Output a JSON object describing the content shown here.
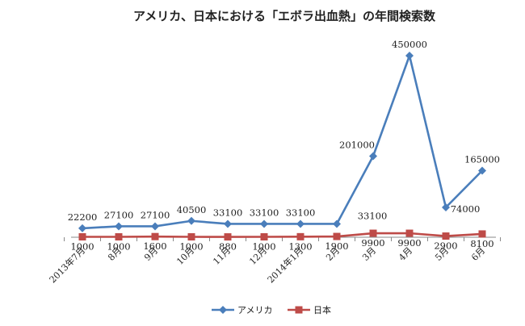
{
  "chart_data": {
    "type": "line",
    "title": "アメリカ、日本における「エボラ出血熱」の年間検索数",
    "categories": [
      "2013年7月",
      "8月",
      "9月",
      "10月",
      "11月",
      "12月",
      "2014年1月",
      "2月",
      "3月",
      "4月",
      "5月",
      "6月"
    ],
    "series": [
      {
        "name": "アメリカ",
        "color": "#4a7ebb",
        "marker": "diamond",
        "values": [
          22200,
          27100,
          27100,
          40500,
          33100,
          33100,
          33100,
          33100,
          201000,
          450000,
          74000,
          165000
        ],
        "labels": [
          "22200",
          "27100",
          "27100",
          "40500",
          "33100",
          "33100",
          "33100",
          "33100",
          "201000",
          "450000",
          "74000",
          "165000"
        ]
      },
      {
        "name": "日本",
        "color": "#be4b48",
        "marker": "square",
        "values": [
          1000,
          1000,
          1600,
          1000,
          880,
          1000,
          1300,
          1900,
          9900,
          9900,
          2900,
          8100
        ],
        "labels": [
          "1000",
          "1000",
          "1600",
          "1000",
          "880",
          "1000",
          "1300",
          "1900",
          "9900",
          "9900",
          "2900",
          "8100"
        ]
      }
    ],
    "ylim": [
      0,
      500000
    ],
    "grid": false,
    "legend_position": "bottom"
  }
}
